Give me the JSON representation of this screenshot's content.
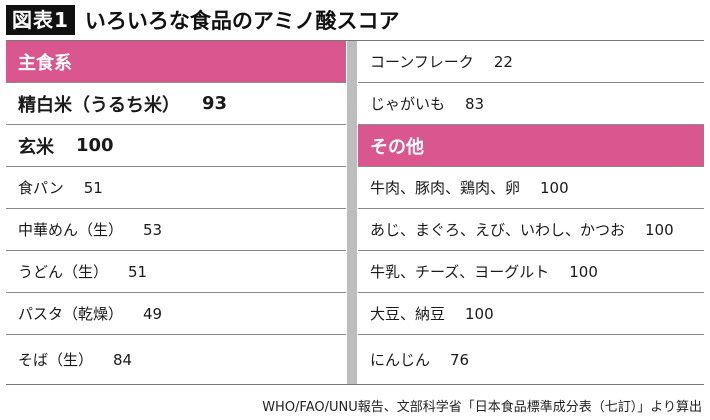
{
  "header": {
    "figure_label": "図表1",
    "title": "いろいろな食品のアミノ酸スコア"
  },
  "left_column": {
    "category": "主食系",
    "rows": [
      {
        "name": "精白米（うるち米）",
        "score": "93",
        "emphasis": true
      },
      {
        "name": "玄米",
        "score": "100",
        "emphasis": true
      },
      {
        "name": "食パン",
        "score": "51"
      },
      {
        "name": "中華めん（生）",
        "score": "53"
      },
      {
        "name": "うどん（生）",
        "score": "51"
      },
      {
        "name": "パスタ（乾燥）",
        "score": "49"
      },
      {
        "name": "そば（生）",
        "score": "84"
      }
    ]
  },
  "right_column": {
    "rows_before": [
      {
        "name": "コーンフレーク",
        "score": "22"
      },
      {
        "name": "じゃがいも",
        "score": "83"
      }
    ],
    "category": "その他",
    "rows_after": [
      {
        "name": "牛肉、豚肉、鶏肉、卵",
        "score": "100"
      },
      {
        "name": "あじ、まぐろ、えび、いわし、かつお",
        "score": "100"
      },
      {
        "name": "牛乳、チーズ、ヨーグルト",
        "score": "100"
      },
      {
        "name": "大豆、納豆",
        "score": "100"
      },
      {
        "name": "にんじん",
        "score": "76"
      }
    ]
  },
  "source": "WHO/FAO/UNU報告、文部科学省「日本食品標準成分表（七訂）」より算出",
  "colors": {
    "category_bg": "#d9568f",
    "divider": "#bdbdbd",
    "badge_bg": "#111111"
  }
}
